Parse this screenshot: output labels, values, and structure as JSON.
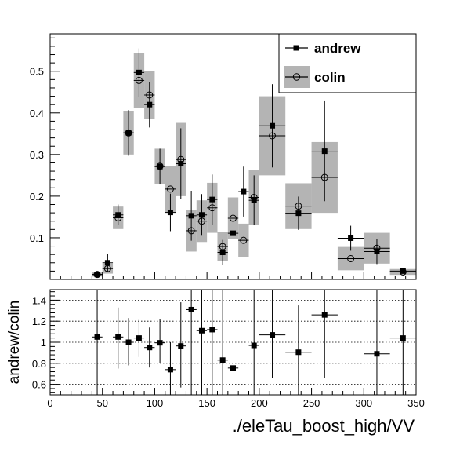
{
  "chart_data": [
    {
      "type": "scatter",
      "panel": "main",
      "title": "",
      "xlabel": "",
      "ylabel": "",
      "xlim": [
        0,
        350
      ],
      "ylim": [
        0,
        0.59
      ],
      "xticks": [],
      "yticks": [
        0.1,
        0.2,
        0.3,
        0.4,
        0.5
      ],
      "ytick_labels": [
        "0.1",
        "0.2",
        "0.3",
        "0.4",
        "0.5"
      ],
      "legend_position": "top-right",
      "series": [
        {
          "name": "andrew",
          "marker": "filled-square",
          "color": "#000000",
          "points": [
            {
              "x": 45,
              "xerr": 5,
              "y": 0.012,
              "yerr": 0.004
            },
            {
              "x": 55,
              "xerr": 5,
              "y": 0.04,
              "yerr": 0.022
            },
            {
              "x": 65,
              "xerr": 5,
              "y": 0.155,
              "yerr": 0.025
            },
            {
              "x": 75,
              "xerr": 5,
              "y": 0.352,
              "yerr": 0.055
            },
            {
              "x": 85,
              "xerr": 5,
              "y": 0.497,
              "yerr": 0.058
            },
            {
              "x": 95,
              "xerr": 5,
              "y": 0.42,
              "yerr": 0.055
            },
            {
              "x": 105,
              "xerr": 5,
              "y": 0.271,
              "yerr": 0.043
            },
            {
              "x": 115,
              "xerr": 5,
              "y": 0.161,
              "yerr": 0.045
            },
            {
              "x": 125,
              "xerr": 5,
              "y": 0.278,
              "yerr": 0.085
            },
            {
              "x": 135,
              "xerr": 5,
              "y": 0.153,
              "yerr": 0.06
            },
            {
              "x": 145,
              "xerr": 5,
              "y": 0.155,
              "yerr": 0.05
            },
            {
              "x": 155,
              "xerr": 5,
              "y": 0.192,
              "yerr": 0.06
            },
            {
              "x": 165,
              "xerr": 5,
              "y": 0.065,
              "yerr": 0.03
            },
            {
              "x": 175,
              "xerr": 5,
              "y": 0.111,
              "yerr": 0.04
            },
            {
              "x": 185,
              "xerr": 5,
              "y": 0.211,
              "yerr": 0.06
            },
            {
              "x": 195,
              "xerr": 5,
              "y": 0.19,
              "yerr": 0.06
            },
            {
              "x": 212.5,
              "xerr": 12.5,
              "y": 0.369,
              "yerr": 0.1
            },
            {
              "x": 237.5,
              "xerr": 12.5,
              "y": 0.159,
              "yerr": 0.04
            },
            {
              "x": 262.5,
              "xerr": 12.5,
              "y": 0.308,
              "yerr": 0.12
            },
            {
              "x": 287.5,
              "xerr": 12.5,
              "y": 0.099,
              "yerr": 0.03
            },
            {
              "x": 312.5,
              "xerr": 12.5,
              "y": 0.067,
              "yerr": 0.03
            },
            {
              "x": 337.5,
              "xerr": 12.5,
              "y": 0.02,
              "yerr": 0.004
            }
          ]
        },
        {
          "name": "colin",
          "marker": "open-circle",
          "color": "#000000",
          "band_color": "#b4b4b4",
          "points": [
            {
              "x": 45,
              "xerr": 5,
              "y": 0.012,
              "syst": 0.005
            },
            {
              "x": 55,
              "xerr": 5,
              "y": 0.026,
              "syst": 0.012
            },
            {
              "x": 65,
              "xerr": 5,
              "y": 0.148,
              "syst": 0.027
            },
            {
              "x": 75,
              "xerr": 5,
              "y": 0.352,
              "syst": 0.052
            },
            {
              "x": 85,
              "xerr": 5,
              "y": 0.478,
              "syst": 0.066
            },
            {
              "x": 95,
              "xerr": 5,
              "y": 0.443,
              "syst": 0.057
            },
            {
              "x": 105,
              "xerr": 5,
              "y": 0.272,
              "syst": 0.042
            },
            {
              "x": 115,
              "xerr": 5,
              "y": 0.217,
              "syst": 0.055
            },
            {
              "x": 125,
              "xerr": 5,
              "y": 0.288,
              "syst": 0.088
            },
            {
              "x": 135,
              "xerr": 5,
              "y": 0.117,
              "syst": 0.05
            },
            {
              "x": 145,
              "xerr": 5,
              "y": 0.14,
              "syst": 0.05
            },
            {
              "x": 155,
              "xerr": 5,
              "y": 0.172,
              "syst": 0.06
            },
            {
              "x": 165,
              "xerr": 5,
              "y": 0.079,
              "syst": 0.035
            },
            {
              "x": 175,
              "xerr": 5,
              "y": 0.147,
              "syst": 0.05
            },
            {
              "x": 185,
              "xerr": 5,
              "y": 0.094,
              "syst": 0.04
            },
            {
              "x": 195,
              "xerr": 5,
              "y": 0.197,
              "syst": 0.065
            },
            {
              "x": 212.5,
              "xerr": 12.5,
              "y": 0.345,
              "syst": 0.095
            },
            {
              "x": 237.5,
              "xerr": 12.5,
              "y": 0.176,
              "syst": 0.055
            },
            {
              "x": 262.5,
              "xerr": 12.5,
              "y": 0.245,
              "syst": 0.085
            },
            {
              "x": 287.5,
              "xerr": 12.5,
              "y": 0.05,
              "syst": 0.028
            },
            {
              "x": 312.5,
              "xerr": 12.5,
              "y": 0.075,
              "syst": 0.037
            },
            {
              "x": 337.5,
              "xerr": 12.5,
              "y": 0.018,
              "syst": 0.007
            }
          ]
        }
      ]
    },
    {
      "type": "scatter",
      "panel": "ratio",
      "title": "",
      "xlabel": "./eleTau_boost_high/VV",
      "ylabel": "andrew/colin",
      "xlim": [
        0,
        350
      ],
      "ylim": [
        0.5,
        1.5
      ],
      "xticks": [
        0,
        50,
        100,
        150,
        200,
        250,
        300,
        350
      ],
      "xtick_labels": [
        "0",
        "50",
        "100",
        "150",
        "200",
        "250",
        "300",
        "350"
      ],
      "yticks": [
        0.6,
        0.8,
        1,
        1.2,
        1.4
      ],
      "ytick_labels": [
        "0.6",
        "0.8",
        "1",
        "1.2",
        "1.4"
      ],
      "grid": "horizontal dotted",
      "series": [
        {
          "name": "andrew/colin",
          "marker": "filled-square",
          "color": "#000000",
          "points": [
            {
              "x": 45,
              "xerr": 5,
              "y": 1.05,
              "ylow": 0.5,
              "yhigh": 1.5
            },
            {
              "x": 65,
              "xerr": 5,
              "y": 1.05,
              "ylow": 0.75,
              "yhigh": 1.33
            },
            {
              "x": 75,
              "xerr": 5,
              "y": 1.0,
              "ylow": 0.78,
              "yhigh": 1.23
            },
            {
              "x": 85,
              "xerr": 5,
              "y": 1.04,
              "ylow": 0.86,
              "yhigh": 1.22
            },
            {
              "x": 95,
              "xerr": 5,
              "y": 0.95,
              "ylow": 0.76,
              "yhigh": 1.14
            },
            {
              "x": 105,
              "xerr": 5,
              "y": 0.995,
              "ylow": 0.8,
              "yhigh": 1.22
            },
            {
              "x": 115,
              "xerr": 5,
              "y": 0.74,
              "ylow": 0.5,
              "yhigh": 1.0
            },
            {
              "x": 125,
              "xerr": 5,
              "y": 0.965,
              "ylow": 0.57,
              "yhigh": 1.38
            },
            {
              "x": 135,
              "xerr": 5,
              "y": 1.31,
              "ylow": 0.5,
              "yhigh": 1.5
            },
            {
              "x": 145,
              "xerr": 5,
              "y": 1.11,
              "ylow": 0.5,
              "yhigh": 1.5
            },
            {
              "x": 155,
              "xerr": 5,
              "y": 1.12,
              "ylow": 0.5,
              "yhigh": 1.5
            },
            {
              "x": 165,
              "xerr": 5,
              "y": 0.83,
              "ylow": 0.5,
              "yhigh": 1.5
            },
            {
              "x": 175,
              "xerr": 5,
              "y": 0.755,
              "ylow": 0.5,
              "yhigh": 1.19
            },
            {
              "x": 195,
              "xerr": 5,
              "y": 0.97,
              "ylow": 0.5,
              "yhigh": 1.5
            },
            {
              "x": 212.5,
              "xerr": 12.5,
              "y": 1.07,
              "ylow": 0.66,
              "yhigh": 1.5
            },
            {
              "x": 237.5,
              "xerr": 12.5,
              "y": 0.905,
              "ylow": 0.5,
              "yhigh": 1.35
            },
            {
              "x": 262.5,
              "xerr": 12.5,
              "y": 1.26,
              "ylow": 0.66,
              "yhigh": 1.5
            },
            {
              "x": 312.5,
              "xerr": 12.5,
              "y": 0.89,
              "ylow": 0.5,
              "yhigh": 1.5
            },
            {
              "x": 337.5,
              "xerr": 12.5,
              "y": 1.04,
              "ylow": 0.5,
              "yhigh": 1.5
            }
          ]
        }
      ]
    }
  ]
}
